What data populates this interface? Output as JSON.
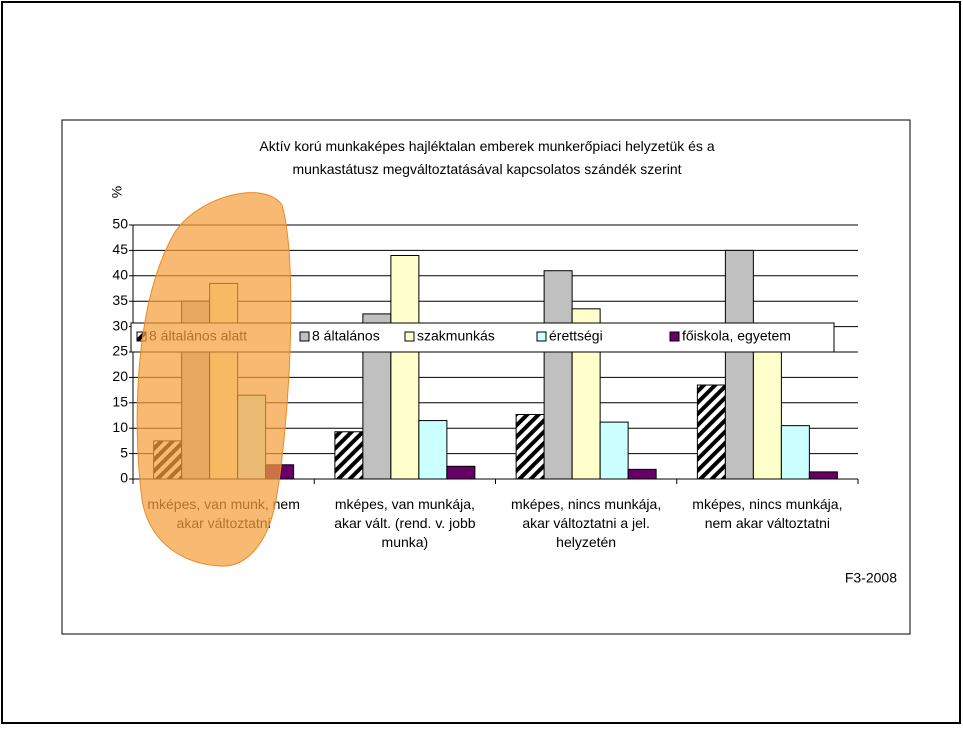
{
  "chart_data": {
    "type": "bar",
    "title": "Aktív korú munkaképes hajléktalan emberek munkerőpiaci helyzetük és a munkastátusz megváltoztatásával kapcsolatos szándék szerint",
    "y_label": "%",
    "annotation": "F3-2008",
    "categories": [
      "mképes, van munk, nem akar változtatni",
      "mképes, van munkája, akar vált. (rend. v. jobb munka)",
      "mképes, nincs munkája, akar változtatni a jel. helyzetén",
      "mképes, nincs munkája, nem akar változtatni"
    ],
    "series": [
      {
        "name": "8 általános alatt",
        "color": "hatch",
        "values": [
          7.5,
          9.3,
          12.7,
          18.5
        ]
      },
      {
        "name": "8 általános",
        "color": "#c0c0c0",
        "values": [
          35,
          32.5,
          41,
          45
        ]
      },
      {
        "name": "szakmunkás",
        "color": "#ffffcc",
        "values": [
          38.5,
          44,
          33.5,
          30
        ]
      },
      {
        "name": "érettségi",
        "color": "#ccffff",
        "values": [
          16.5,
          11.5,
          11.2,
          10.5
        ]
      },
      {
        "name": "főiskola, egyetem",
        "color": "#660066",
        "values": [
          2.8,
          2.5,
          1.9,
          1.4
        ]
      }
    ],
    "ylim": [
      0,
      50
    ],
    "yticks": [
      0,
      5,
      10,
      15,
      20,
      25,
      30,
      35,
      40,
      45,
      50
    ],
    "grid": true
  }
}
